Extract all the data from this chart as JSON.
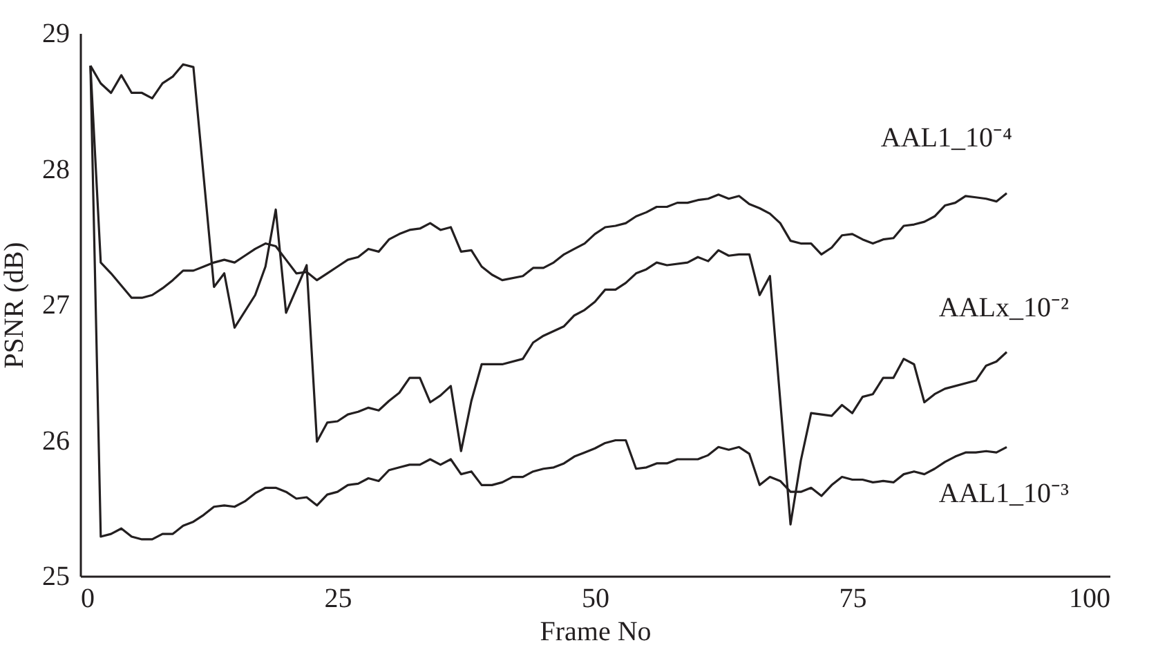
{
  "chart_data": {
    "type": "line",
    "xlabel": "Frame No",
    "ylabel": "PSNR (dB)",
    "xlim": [
      0,
      100
    ],
    "xticks": [
      0,
      25,
      50,
      75,
      100
    ],
    "ylim": [
      25,
      29
    ],
    "yticks": [
      25,
      26,
      27,
      28,
      29
    ],
    "grid": false,
    "legend": false,
    "marker": "none",
    "line_style": "solid",
    "series": [
      {
        "name": "AAL1_10⁻⁴",
        "color": "#231f20",
        "x": [
          1,
          2,
          3,
          4,
          5,
          6,
          7,
          8,
          9,
          10,
          11,
          12,
          13,
          14,
          15,
          16,
          17,
          18,
          19,
          20,
          21,
          22,
          23,
          24,
          25,
          26,
          27,
          28,
          29,
          30,
          31,
          32,
          33,
          34,
          35,
          36,
          37,
          38,
          39,
          40,
          41,
          43,
          44,
          45,
          46,
          47,
          48,
          49,
          50,
          51,
          52,
          53,
          54,
          55,
          56,
          57,
          58,
          59,
          60,
          61,
          62,
          63,
          64,
          65,
          66,
          67,
          68,
          69,
          70,
          71,
          72,
          73,
          74,
          75,
          76,
          77,
          78,
          79,
          80,
          81,
          82,
          83,
          84,
          85,
          86,
          87,
          88,
          89,
          90
        ],
        "values": [
          28.76,
          27.31,
          27.23,
          27.14,
          27.05,
          27.05,
          27.07,
          27.12,
          27.18,
          27.25,
          27.25,
          27.28,
          27.31,
          27.33,
          27.31,
          27.36,
          27.41,
          27.45,
          27.43,
          27.33,
          27.23,
          27.24,
          27.18,
          27.23,
          27.28,
          27.33,
          27.35,
          27.41,
          27.39,
          27.48,
          27.52,
          27.55,
          27.56,
          27.6,
          27.55,
          27.57,
          27.39,
          27.4,
          27.28,
          27.22,
          27.18,
          27.21,
          27.27,
          27.27,
          27.31,
          27.37,
          27.41,
          27.45,
          27.52,
          27.57,
          27.58,
          27.6,
          27.65,
          27.68,
          27.72,
          27.72,
          27.75,
          27.75,
          27.77,
          27.78,
          27.81,
          27.78,
          27.8,
          27.74,
          27.71,
          27.67,
          27.6,
          27.47,
          27.45,
          27.45,
          27.37,
          27.42,
          27.51,
          27.52,
          27.48,
          27.45,
          27.48,
          27.49,
          27.58,
          27.59,
          27.61,
          27.65,
          27.73,
          27.75,
          27.8,
          27.79,
          27.78,
          27.76,
          27.82
        ]
      },
      {
        "name": "AALx_10⁻²",
        "color": "#231f20",
        "x": [
          1,
          2,
          3,
          4,
          5,
          6,
          7,
          8,
          9,
          10,
          11,
          13,
          14,
          15,
          17,
          18,
          19,
          20,
          22,
          23,
          24,
          25,
          26,
          27,
          28,
          29,
          30,
          31,
          32,
          33,
          34,
          35,
          36,
          37,
          38,
          39,
          41,
          43,
          44,
          45,
          47,
          48,
          49,
          50,
          51,
          52,
          53,
          54,
          55,
          56,
          57,
          59,
          60,
          61,
          62,
          63,
          64,
          65,
          66,
          67,
          69,
          70,
          71,
          73,
          74,
          75,
          76,
          77,
          78,
          79,
          80,
          81,
          82,
          83,
          84,
          87,
          88,
          89,
          90
        ],
        "values": [
          28.76,
          28.63,
          28.56,
          28.69,
          28.56,
          28.56,
          28.52,
          28.63,
          28.68,
          28.77,
          28.75,
          27.13,
          27.23,
          26.83,
          27.07,
          27.28,
          27.7,
          26.94,
          27.29,
          25.99,
          26.13,
          26.14,
          26.19,
          26.21,
          26.24,
          26.22,
          26.29,
          26.35,
          26.46,
          26.46,
          26.28,
          26.33,
          26.4,
          25.92,
          26.29,
          26.56,
          26.56,
          26.6,
          26.72,
          26.77,
          26.84,
          26.92,
          26.96,
          27.02,
          27.11,
          27.11,
          27.16,
          27.23,
          27.26,
          27.31,
          27.29,
          27.31,
          27.35,
          27.32,
          27.4,
          27.36,
          27.37,
          27.37,
          27.07,
          27.21,
          25.38,
          25.85,
          26.2,
          26.18,
          26.26,
          26.2,
          26.32,
          26.34,
          26.46,
          26.46,
          26.6,
          26.56,
          26.28,
          26.34,
          26.38,
          26.44,
          26.55,
          26.58,
          26.65
        ]
      },
      {
        "name": "AAL1_10⁻³",
        "color": "#231f20",
        "x": [
          1,
          2,
          3,
          4,
          5,
          6,
          7,
          8,
          9,
          10,
          11,
          12,
          13,
          14,
          15,
          16,
          17,
          18,
          19,
          20,
          21,
          22,
          23,
          24,
          25,
          26,
          27,
          28,
          29,
          30,
          31,
          32,
          33,
          34,
          35,
          36,
          37,
          38,
          39,
          40,
          41,
          42,
          43,
          44,
          45,
          46,
          47,
          48,
          49,
          50,
          51,
          52,
          53,
          54,
          55,
          56,
          57,
          58,
          59,
          60,
          61,
          62,
          63,
          64,
          65,
          66,
          67,
          68,
          69,
          70,
          71,
          72,
          73,
          74,
          75,
          76,
          77,
          78,
          79,
          80,
          81,
          82,
          83,
          84,
          85,
          86,
          87,
          88,
          89,
          90
        ],
        "values": [
          28.76,
          25.29,
          25.31,
          25.35,
          25.29,
          25.27,
          25.27,
          25.31,
          25.31,
          25.37,
          25.4,
          25.45,
          25.51,
          25.52,
          25.51,
          25.55,
          25.61,
          25.65,
          25.65,
          25.62,
          25.57,
          25.58,
          25.52,
          25.6,
          25.62,
          25.67,
          25.68,
          25.72,
          25.7,
          25.78,
          25.8,
          25.82,
          25.82,
          25.86,
          25.82,
          25.86,
          25.75,
          25.77,
          25.67,
          25.67,
          25.69,
          25.73,
          25.73,
          25.77,
          25.79,
          25.8,
          25.83,
          25.88,
          25.91,
          25.94,
          25.98,
          26.0,
          26.0,
          25.79,
          25.8,
          25.83,
          25.83,
          25.86,
          25.86,
          25.86,
          25.89,
          25.95,
          25.93,
          25.95,
          25.9,
          25.67,
          25.73,
          25.7,
          25.62,
          25.62,
          25.65,
          25.59,
          25.67,
          25.73,
          25.71,
          25.71,
          25.69,
          25.7,
          25.69,
          25.75,
          25.77,
          25.75,
          25.79,
          25.84,
          25.88,
          25.91,
          25.91,
          25.92,
          25.91,
          25.95
        ]
      }
    ]
  }
}
